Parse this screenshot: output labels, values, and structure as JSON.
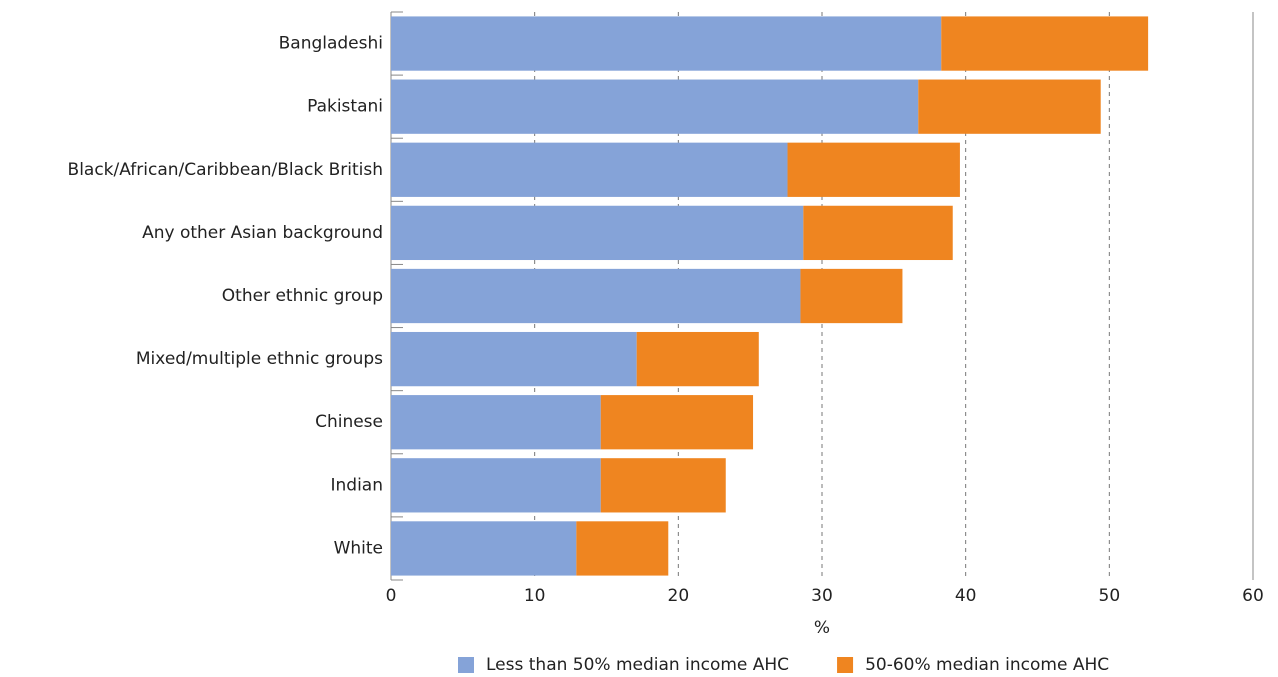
{
  "chart_data": {
    "type": "stacked-barh",
    "categories": [
      "Bangladeshi",
      "Pakistani",
      "Black/African/Caribbean/Black British",
      "Any other Asian background",
      "Other ethnic group",
      "Mixed/multiple ethnic groups",
      "Chinese",
      "Indian",
      "White"
    ],
    "series": [
      {
        "name": "Less than 50% median income AHC",
        "color": "#85a3d8",
        "values": [
          38.3,
          36.7,
          27.6,
          28.7,
          28.5,
          17.1,
          14.6,
          14.6,
          12.9
        ]
      },
      {
        "name": "50-60% median income AHC",
        "color": "#ef8520",
        "values": [
          14.4,
          12.7,
          12.0,
          10.4,
          7.1,
          8.5,
          10.6,
          8.7,
          6.4
        ]
      }
    ],
    "xlabel": "%",
    "xlim": [
      0,
      60
    ],
    "xticks": [
      0,
      10,
      20,
      30,
      40,
      50,
      60
    ],
    "grid": true,
    "legend": "bottom"
  }
}
